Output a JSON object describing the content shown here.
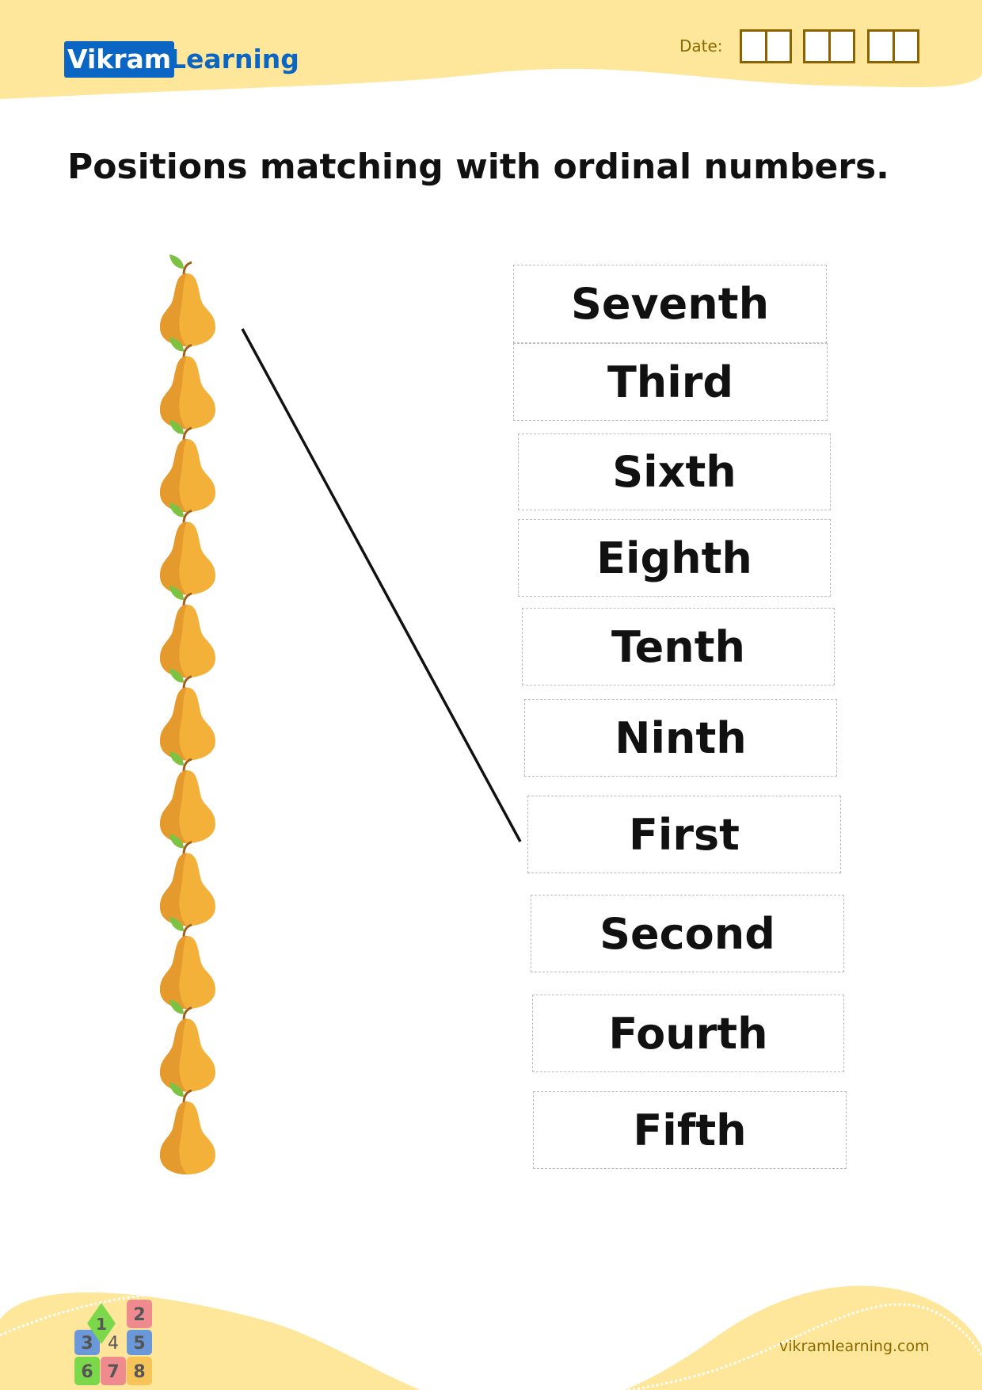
{
  "header": {
    "logo_part1": "Vikram",
    "logo_part2": "Learning",
    "date_label": "Date:"
  },
  "title": "Positions matching with ordinal numbers.",
  "pears": {
    "count": 11,
    "body_color": "#f4b13a",
    "shade_color": "#e59a2e",
    "leaf_color": "#7cc243",
    "stem_color": "#a0601a"
  },
  "ordinals": [
    "Seventh",
    "Third",
    "Sixth",
    "Eighth",
    "Tenth",
    "Ninth",
    "First",
    "Second",
    "Fourth",
    "Fifth"
  ],
  "footer": {
    "url": "vikramlearning.com",
    "blocks_logo_digits": [
      "1",
      "2",
      "3",
      "4",
      "5",
      "6",
      "7",
      "8"
    ]
  },
  "colors": {
    "band": "#fee69a",
    "brand_blue": "#0b66c3",
    "date_brown": "#8a6200"
  }
}
